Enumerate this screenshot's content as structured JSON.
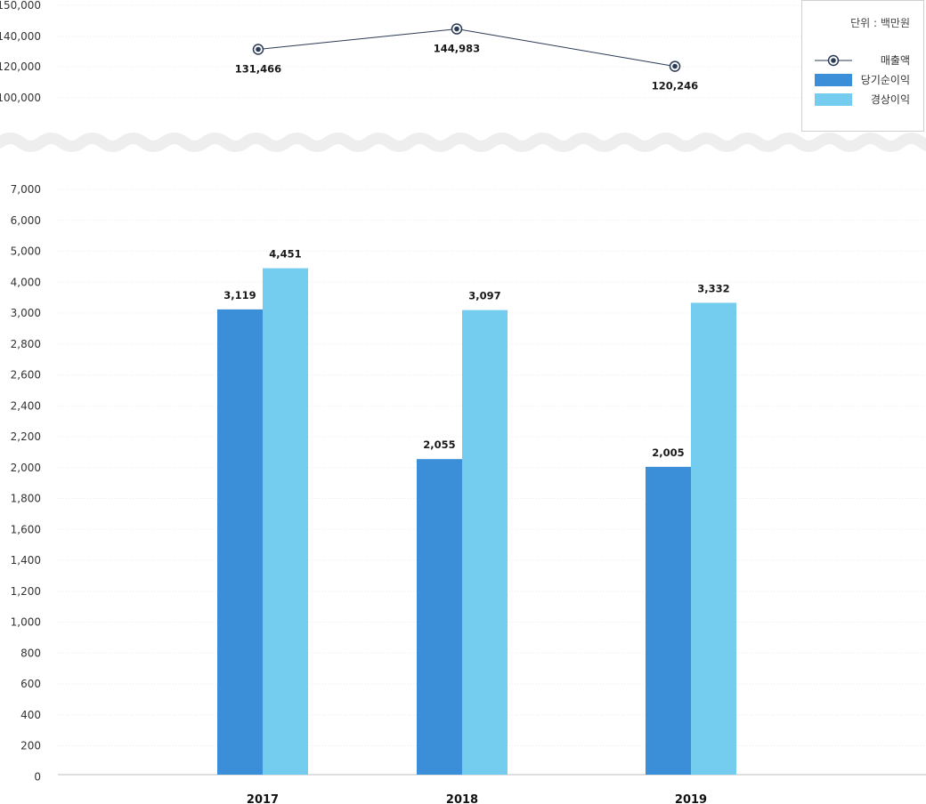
{
  "chart_data": {
    "type": "combo",
    "unit_label": "단위 : 백만원",
    "categories": [
      "2017",
      "2018",
      "2019"
    ],
    "line_series": {
      "name": "매출액",
      "values": [
        131466,
        144983,
        120246
      ],
      "labels": [
        "131,466",
        "144,983",
        "120,246"
      ],
      "color": "#2b3a55"
    },
    "bar_series": [
      {
        "name": "당기순이익",
        "values": [
          3119,
          2055,
          2005
        ],
        "labels": [
          "3,119",
          "2,055",
          "2,005"
        ],
        "color": "#3a8fd8"
      },
      {
        "name": "경상이익",
        "values": [
          4451,
          3097,
          3332
        ],
        "labels": [
          "4,451",
          "3,097",
          "3,332"
        ],
        "color": "#74ccef"
      }
    ],
    "top_axis": {
      "ticks": [
        "150,000",
        "140,000",
        "120,000",
        "100,000"
      ],
      "ylim": [
        100000,
        150000
      ]
    },
    "bottom_axis": {
      "ticks": [
        "7,000",
        "6,000",
        "5,000",
        "4,000",
        "3,000",
        "2,800",
        "2,600",
        "2,400",
        "2,200",
        "2,000",
        "1,800",
        "1,600",
        "1,400",
        "1,200",
        "1,000",
        "800",
        "600",
        "400",
        "200",
        "0"
      ],
      "tick_values": [
        7000,
        6000,
        5000,
        4000,
        3000,
        2800,
        2600,
        2400,
        2200,
        2000,
        1800,
        1600,
        1400,
        1200,
        1000,
        800,
        600,
        400,
        200,
        0
      ]
    },
    "grid": true,
    "legend_position": "top-right"
  }
}
